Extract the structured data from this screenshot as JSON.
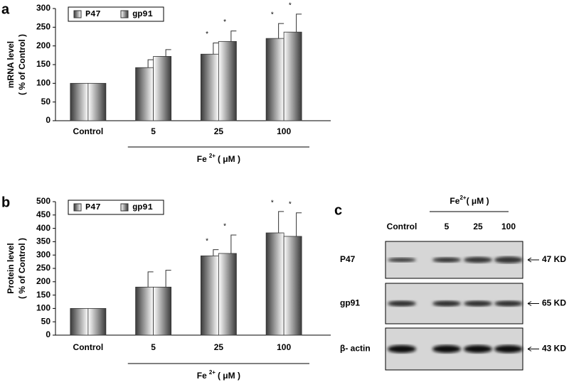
{
  "chart_data": [
    {
      "type": "bar",
      "panel_label": "a",
      "ylabel": [
        "mRNA level",
        "( % of Control )"
      ],
      "categories": [
        "Control",
        "5",
        "25",
        "100"
      ],
      "x_label_parts": {
        "base": "Fe",
        "sup": "2+",
        "unit": "( μM )"
      },
      "series": [
        {
          "name": "P47",
          "color": "#333333",
          "values": [
            100,
            142,
            178,
            220
          ],
          "errors": [
            null,
            21,
            30,
            40
          ],
          "markers": [
            null,
            null,
            "*",
            "*"
          ]
        },
        {
          "name": "gp91",
          "color": "#333333",
          "values": [
            100,
            172,
            212,
            237
          ],
          "errors": [
            null,
            18,
            28,
            48
          ],
          "markers": [
            null,
            null,
            "*",
            "*"
          ]
        }
      ],
      "ylim": [
        0,
        300
      ],
      "yticks": [
        0,
        50,
        100,
        150,
        200,
        250,
        300
      ]
    },
    {
      "type": "bar",
      "panel_label": "b",
      "ylabel": [
        "Protein level",
        "( % of Control )"
      ],
      "categories": [
        "Control",
        "5",
        "25",
        "100"
      ],
      "x_label_parts": {
        "base": "Fe",
        "sup": "2+",
        "unit": "( μM )"
      },
      "series": [
        {
          "name": "P47",
          "color": "#333333",
          "values": [
            100,
            180,
            297,
            383
          ],
          "errors": [
            null,
            57,
            23,
            80
          ],
          "markers": [
            null,
            null,
            "*",
            "*"
          ]
        },
        {
          "name": "gp91",
          "color": "#333333",
          "values": [
            100,
            180,
            306,
            370
          ],
          "errors": [
            null,
            63,
            69,
            88
          ],
          "markers": [
            null,
            null,
            "*",
            "*"
          ]
        }
      ],
      "ylim": [
        0,
        500
      ],
      "yticks": [
        0,
        50,
        100,
        150,
        200,
        250,
        300,
        350,
        400,
        450,
        500
      ]
    }
  ],
  "blot": {
    "panel_label": "c",
    "header": {
      "base": "Fe",
      "sup": "2+",
      "unit": "(  μM )"
    },
    "lanes": [
      "Control",
      "5",
      "25",
      "100"
    ],
    "rows": [
      {
        "label": "P47",
        "size": "47 KD"
      },
      {
        "label": "gp91",
        "size": "65 KD"
      },
      {
        "label": "β- actin",
        "size": "43 KD"
      }
    ]
  }
}
